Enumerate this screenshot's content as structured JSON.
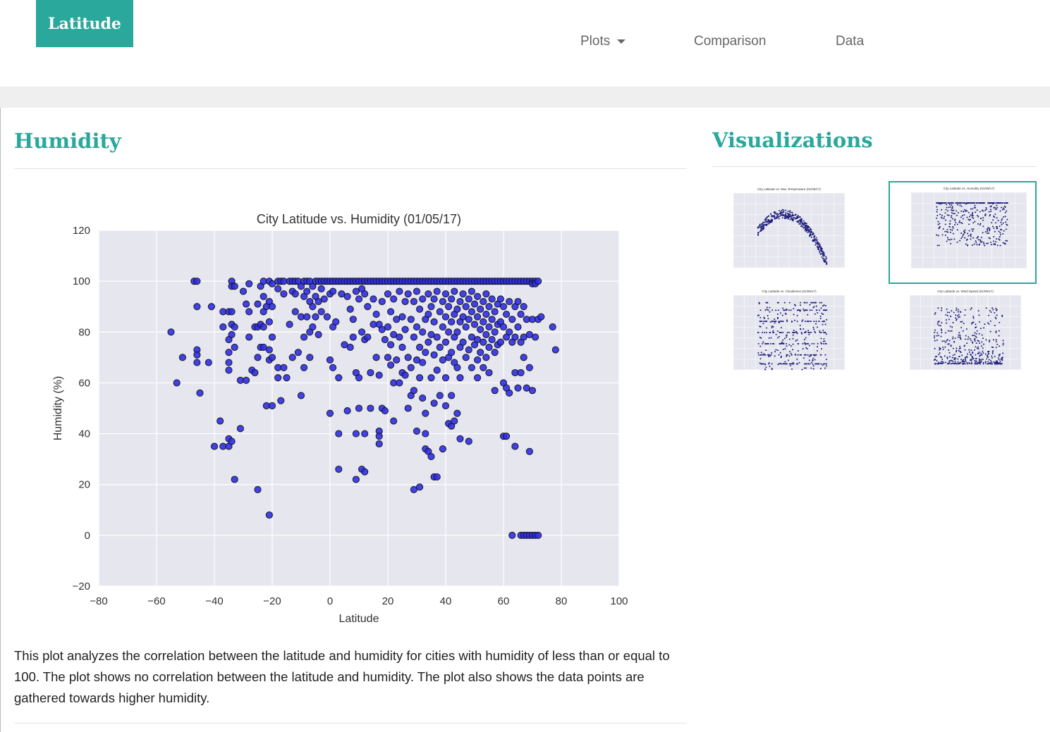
{
  "navbar": {
    "brand": "Latitude",
    "items": [
      {
        "label": "Plots",
        "dropdown": true
      },
      {
        "label": "Comparison"
      },
      {
        "label": "Data"
      }
    ]
  },
  "main": {
    "heading": "Humidity",
    "description": "This plot analyzes the correlation between the latitude and humidity for cities with humidity of less than or equal to 100. The plot shows no correlation between the latitude and humidity. The plot also shows the data points are gathered towards higher humidity."
  },
  "sidebar": {
    "heading": "Visualizations",
    "thumbnails": [
      {
        "title": "City Latitude vs. Max Temperature (01/05/17)",
        "active": false
      },
      {
        "title": "City Latitude vs. Humidity (01/05/17)",
        "active": true
      },
      {
        "title": "City Latitude vs. Cloudiness (01/05/17)",
        "active": false
      },
      {
        "title": "City Latitude vs. Wind Speed (01/05/17)",
        "active": false
      }
    ]
  },
  "colors": {
    "accent": "#2aa89b",
    "marker": "#2f2fe6",
    "plot_bg": "#e6e6ef"
  },
  "chart_data": {
    "type": "scatter",
    "title": "City Latitude vs. Humidity (01/05/17)",
    "xlabel": "Latitude",
    "ylabel": "Humidity (%)",
    "xlim": [
      -80,
      100
    ],
    "ylim": [
      -20,
      120
    ],
    "xticks": [
      -80,
      -60,
      -40,
      -20,
      0,
      20,
      40,
      60,
      80,
      100
    ],
    "yticks": [
      -20,
      0,
      20,
      40,
      60,
      80,
      100,
      120
    ],
    "grid": true,
    "points": [
      [
        -55,
        80
      ],
      [
        -53,
        60
      ],
      [
        -51,
        70
      ],
      [
        -47,
        100
      ],
      [
        -46,
        100
      ],
      [
        -46,
        90
      ],
      [
        -46,
        73
      ],
      [
        -46,
        71
      ],
      [
        -46,
        68
      ],
      [
        -45,
        56
      ],
      [
        -42,
        68
      ],
      [
        -41,
        90
      ],
      [
        -40,
        35
      ],
      [
        -38,
        45
      ],
      [
        -37,
        88
      ],
      [
        -37,
        82
      ],
      [
        -37,
        35
      ],
      [
        -35,
        88
      ],
      [
        -35,
        77
      ],
      [
        -35,
        72
      ],
      [
        -35,
        68
      ],
      [
        -35,
        65
      ],
      [
        -35,
        38
      ],
      [
        -35,
        35
      ],
      [
        -34,
        100
      ],
      [
        -34,
        98
      ],
      [
        -34,
        88
      ],
      [
        -34,
        83
      ],
      [
        -34,
        79
      ],
      [
        -34,
        37
      ],
      [
        -33,
        98
      ],
      [
        -33,
        82
      ],
      [
        -33,
        74
      ],
      [
        -33,
        22
      ],
      [
        -31,
        61
      ],
      [
        -31,
        42
      ],
      [
        -30,
        96
      ],
      [
        -29,
        91
      ],
      [
        -29,
        61
      ],
      [
        -28,
        99
      ],
      [
        -28,
        88
      ],
      [
        -28,
        78
      ],
      [
        -27,
        65
      ],
      [
        -26,
        82
      ],
      [
        -26,
        64
      ],
      [
        -25,
        91
      ],
      [
        -25,
        82
      ],
      [
        -25,
        70
      ],
      [
        -25,
        18
      ],
      [
        -24,
        98
      ],
      [
        -24,
        83
      ],
      [
        -24,
        74
      ],
      [
        -23,
        100
      ],
      [
        -23,
        94
      ],
      [
        -23,
        88
      ],
      [
        -23,
        82
      ],
      [
        -23,
        74
      ],
      [
        -22,
        90
      ],
      [
        -22,
        51
      ],
      [
        -21,
        100
      ],
      [
        -21,
        92
      ],
      [
        -21,
        84
      ],
      [
        -21,
        73
      ],
      [
        -21,
        69
      ],
      [
        -21,
        8
      ],
      [
        -20,
        99
      ],
      [
        -20,
        90
      ],
      [
        -20,
        78
      ],
      [
        -20,
        70
      ],
      [
        -20,
        51
      ],
      [
        -18,
        100
      ],
      [
        -18,
        97
      ],
      [
        -18,
        66
      ],
      [
        -18,
        62
      ],
      [
        -17,
        100
      ],
      [
        -17,
        53
      ],
      [
        -16,
        100
      ],
      [
        -16,
        95
      ],
      [
        -16,
        66
      ],
      [
        -15,
        62
      ],
      [
        -14,
        100
      ],
      [
        -14,
        83
      ],
      [
        -13,
        100
      ],
      [
        -13,
        96
      ],
      [
        -13,
        70
      ],
      [
        -12,
        100
      ],
      [
        -12,
        95
      ],
      [
        -12,
        88
      ],
      [
        -11,
        100
      ],
      [
        -11,
        72
      ],
      [
        -10,
        98
      ],
      [
        -10,
        86
      ],
      [
        -10,
        55
      ],
      [
        -9,
        100
      ],
      [
        -9,
        94
      ],
      [
        -9,
        78
      ],
      [
        -9,
        66
      ],
      [
        -8,
        100
      ],
      [
        -8,
        96
      ],
      [
        -8,
        86
      ],
      [
        -7,
        100
      ],
      [
        -7,
        92
      ],
      [
        -7,
        80
      ],
      [
        -7,
        70
      ],
      [
        -6,
        98
      ],
      [
        -6,
        90
      ],
      [
        -6,
        82
      ],
      [
        -5,
        100
      ],
      [
        -5,
        94
      ],
      [
        -5,
        86
      ],
      [
        -4,
        100
      ],
      [
        -4,
        92
      ],
      [
        -4,
        79
      ],
      [
        -3,
        100
      ],
      [
        -3,
        97
      ],
      [
        -3,
        88
      ],
      [
        -2,
        100
      ],
      [
        -2,
        93
      ],
      [
        -1,
        100
      ],
      [
        -1,
        86
      ],
      [
        0,
        100
      ],
      [
        0,
        95
      ],
      [
        0,
        69
      ],
      [
        0,
        48
      ],
      [
        1,
        100
      ],
      [
        1,
        96
      ],
      [
        1,
        82
      ],
      [
        1,
        66
      ],
      [
        2,
        100
      ],
      [
        2,
        84
      ],
      [
        3,
        100
      ],
      [
        3,
        62
      ],
      [
        3,
        40
      ],
      [
        3,
        26
      ],
      [
        4,
        100
      ],
      [
        4,
        95
      ],
      [
        5,
        100
      ],
      [
        5,
        75
      ],
      [
        6,
        100
      ],
      [
        6,
        94
      ],
      [
        6,
        49
      ],
      [
        7,
        100
      ],
      [
        7,
        89
      ],
      [
        7,
        74
      ],
      [
        8,
        100
      ],
      [
        8,
        85
      ],
      [
        8,
        78
      ],
      [
        9,
        100
      ],
      [
        9,
        96
      ],
      [
        9,
        64
      ],
      [
        9,
        40
      ],
      [
        9,
        22
      ],
      [
        10,
        100
      ],
      [
        10,
        93
      ],
      [
        10,
        62
      ],
      [
        10,
        50
      ],
      [
        11,
        100
      ],
      [
        11,
        97
      ],
      [
        11,
        80
      ],
      [
        11,
        26
      ],
      [
        12,
        100
      ],
      [
        12,
        95
      ],
      [
        12,
        77
      ],
      [
        12,
        40
      ],
      [
        12,
        25
      ],
      [
        13,
        100
      ],
      [
        13,
        90
      ],
      [
        13,
        78
      ],
      [
        14,
        100
      ],
      [
        14,
        64
      ],
      [
        14,
        50
      ],
      [
        15,
        100
      ],
      [
        15,
        93
      ],
      [
        15,
        83
      ],
      [
        16,
        100
      ],
      [
        16,
        87
      ],
      [
        16,
        70
      ],
      [
        17,
        100
      ],
      [
        17,
        83
      ],
      [
        17,
        63
      ],
      [
        17,
        41
      ],
      [
        17,
        39
      ],
      [
        17,
        36
      ],
      [
        18,
        100
      ],
      [
        18,
        92
      ],
      [
        18,
        81
      ],
      [
        18,
        50
      ],
      [
        19,
        100
      ],
      [
        19,
        77
      ],
      [
        19,
        49
      ],
      [
        20,
        100
      ],
      [
        20,
        95
      ],
      [
        20,
        82
      ],
      [
        20,
        70
      ],
      [
        21,
        100
      ],
      [
        21,
        88
      ],
      [
        21,
        75
      ],
      [
        21,
        67
      ],
      [
        22,
        100
      ],
      [
        22,
        93
      ],
      [
        22,
        79
      ],
      [
        22,
        60
      ],
      [
        22,
        45
      ],
      [
        23,
        100
      ],
      [
        23,
        85
      ],
      [
        23,
        69
      ],
      [
        24,
        100
      ],
      [
        24,
        96
      ],
      [
        24,
        78
      ],
      [
        24,
        60
      ],
      [
        25,
        100
      ],
      [
        25,
        86
      ],
      [
        25,
        74
      ],
      [
        25,
        64
      ],
      [
        26,
        100
      ],
      [
        26,
        92
      ],
      [
        26,
        81
      ],
      [
        26,
        63
      ],
      [
        27,
        100
      ],
      [
        27,
        95
      ],
      [
        27,
        70
      ],
      [
        27,
        50
      ],
      [
        28,
        100
      ],
      [
        28,
        85
      ],
      [
        28,
        66
      ],
      [
        28,
        55
      ],
      [
        29,
        100
      ],
      [
        29,
        92
      ],
      [
        29,
        78
      ],
      [
        29,
        57
      ],
      [
        29,
        18
      ],
      [
        30,
        100
      ],
      [
        30,
        96
      ],
      [
        30,
        82
      ],
      [
        30,
        69
      ],
      [
        30,
        41
      ],
      [
        31,
        100
      ],
      [
        31,
        89
      ],
      [
        31,
        74
      ],
      [
        31,
        62
      ],
      [
        31,
        19
      ],
      [
        32,
        100
      ],
      [
        32,
        93
      ],
      [
        32,
        80
      ],
      [
        32,
        68
      ],
      [
        32,
        54
      ],
      [
        33,
        100
      ],
      [
        33,
        85
      ],
      [
        33,
        72
      ],
      [
        33,
        48
      ],
      [
        33,
        40
      ],
      [
        33,
        34
      ],
      [
        34,
        100
      ],
      [
        34,
        95
      ],
      [
        34,
        87
      ],
      [
        34,
        76
      ],
      [
        34,
        33
      ],
      [
        35,
        100
      ],
      [
        35,
        90
      ],
      [
        35,
        79
      ],
      [
        35,
        62
      ],
      [
        35,
        31
      ],
      [
        36,
        100
      ],
      [
        36,
        93
      ],
      [
        36,
        84
      ],
      [
        36,
        71
      ],
      [
        36,
        52
      ],
      [
        36,
        23
      ],
      [
        37,
        100
      ],
      [
        37,
        96
      ],
      [
        37,
        78
      ],
      [
        37,
        65
      ],
      [
        37,
        23
      ],
      [
        38,
        100
      ],
      [
        38,
        88
      ],
      [
        38,
        74
      ],
      [
        38,
        55
      ],
      [
        39,
        100
      ],
      [
        39,
        92
      ],
      [
        39,
        82
      ],
      [
        39,
        69
      ],
      [
        39,
        34
      ],
      [
        40,
        100
      ],
      [
        40,
        95
      ],
      [
        40,
        86
      ],
      [
        40,
        76
      ],
      [
        40,
        62
      ],
      [
        40,
        51
      ],
      [
        41,
        100
      ],
      [
        41,
        90
      ],
      [
        41,
        80
      ],
      [
        41,
        70
      ],
      [
        41,
        44
      ],
      [
        42,
        100
      ],
      [
        42,
        93
      ],
      [
        42,
        84
      ],
      [
        42,
        72
      ],
      [
        42,
        55
      ],
      [
        42,
        43
      ],
      [
        43,
        100
      ],
      [
        43,
        96
      ],
      [
        43,
        87
      ],
      [
        43,
        78
      ],
      [
        43,
        68
      ],
      [
        43,
        45
      ],
      [
        44,
        100
      ],
      [
        44,
        89
      ],
      [
        44,
        80
      ],
      [
        44,
        66
      ],
      [
        44,
        48
      ],
      [
        45,
        100
      ],
      [
        45,
        92
      ],
      [
        45,
        84
      ],
      [
        45,
        74
      ],
      [
        45,
        62
      ],
      [
        45,
        38
      ],
      [
        46,
        100
      ],
      [
        46,
        95
      ],
      [
        46,
        86
      ],
      [
        46,
        76
      ],
      [
        47,
        100
      ],
      [
        47,
        90
      ],
      [
        47,
        82
      ],
      [
        47,
        70
      ],
      [
        48,
        100
      ],
      [
        48,
        93
      ],
      [
        48,
        85
      ],
      [
        48,
        73
      ],
      [
        48,
        37
      ],
      [
        49,
        100
      ],
      [
        49,
        96
      ],
      [
        49,
        88
      ],
      [
        49,
        78
      ],
      [
        49,
        66
      ],
      [
        50,
        100
      ],
      [
        50,
        91
      ],
      [
        50,
        83
      ],
      [
        50,
        75
      ],
      [
        51,
        100
      ],
      [
        51,
        94
      ],
      [
        51,
        86
      ],
      [
        51,
        77
      ],
      [
        51,
        69
      ],
      [
        51,
        62
      ],
      [
        52,
        100
      ],
      [
        52,
        89
      ],
      [
        52,
        81
      ],
      [
        52,
        72
      ],
      [
        53,
        100
      ],
      [
        53,
        92
      ],
      [
        53,
        84
      ],
      [
        53,
        76
      ],
      [
        53,
        66
      ],
      [
        54,
        100
      ],
      [
        54,
        95
      ],
      [
        54,
        87
      ],
      [
        54,
        79
      ],
      [
        54,
        70
      ],
      [
        55,
        100
      ],
      [
        55,
        90
      ],
      [
        55,
        82
      ],
      [
        55,
        74
      ],
      [
        55,
        64
      ],
      [
        56,
        100
      ],
      [
        56,
        93
      ],
      [
        56,
        85
      ],
      [
        56,
        77
      ],
      [
        57,
        100
      ],
      [
        57,
        88
      ],
      [
        57,
        80
      ],
      [
        57,
        72
      ],
      [
        57,
        57
      ],
      [
        58,
        100
      ],
      [
        58,
        91
      ],
      [
        58,
        83
      ],
      [
        58,
        75
      ],
      [
        59,
        100
      ],
      [
        59,
        93
      ],
      [
        59,
        84
      ],
      [
        59,
        76
      ],
      [
        60,
        100
      ],
      [
        60,
        90
      ],
      [
        60,
        82
      ],
      [
        60,
        60
      ],
      [
        60,
        39
      ],
      [
        61,
        100
      ],
      [
        61,
        87
      ],
      [
        61,
        78
      ],
      [
        61,
        58
      ],
      [
        61,
        39
      ],
      [
        62,
        100
      ],
      [
        62,
        92
      ],
      [
        62,
        80
      ],
      [
        62,
        56
      ],
      [
        63,
        100
      ],
      [
        63,
        85
      ],
      [
        63,
        76
      ],
      [
        63,
        0
      ],
      [
        64,
        100
      ],
      [
        64,
        90
      ],
      [
        64,
        78
      ],
      [
        64,
        64
      ],
      [
        64,
        35
      ],
      [
        65,
        100
      ],
      [
        65,
        92
      ],
      [
        65,
        82
      ],
      [
        65,
        58
      ],
      [
        66,
        100
      ],
      [
        66,
        87
      ],
      [
        66,
        76
      ],
      [
        66,
        64
      ],
      [
        66,
        0
      ],
      [
        67,
        100
      ],
      [
        67,
        90
      ],
      [
        67,
        78
      ],
      [
        67,
        70
      ],
      [
        67,
        0
      ],
      [
        68,
        100
      ],
      [
        68,
        85
      ],
      [
        68,
        58
      ],
      [
        68,
        0
      ],
      [
        69,
        100
      ],
      [
        69,
        79
      ],
      [
        69,
        66
      ],
      [
        69,
        33
      ],
      [
        69,
        0
      ],
      [
        70,
        100
      ],
      [
        70,
        99
      ],
      [
        70,
        85
      ],
      [
        70,
        57
      ],
      [
        70,
        0
      ],
      [
        71,
        100
      ],
      [
        71,
        99
      ],
      [
        71,
        78
      ],
      [
        71,
        0
      ],
      [
        72,
        100
      ],
      [
        72,
        85
      ],
      [
        72,
        0
      ],
      [
        73,
        86
      ],
      [
        77,
        82
      ],
      [
        78,
        73
      ]
    ]
  }
}
